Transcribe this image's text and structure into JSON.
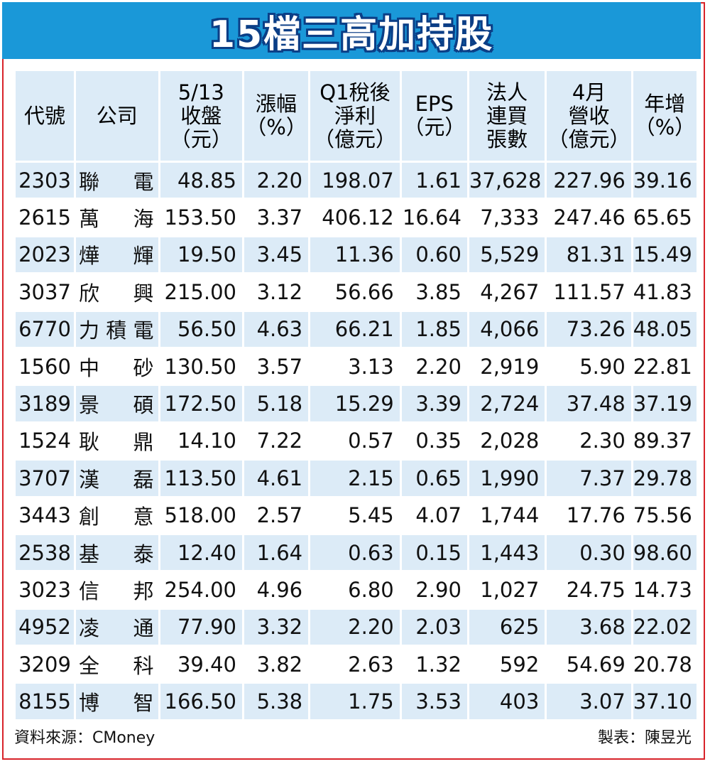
{
  "title": "15檔三高加持股",
  "headers": [
    [
      "代號"
    ],
    [
      "公司"
    ],
    [
      "5/13",
      "收盤",
      "（元）"
    ],
    [
      "漲幅",
      "（%）"
    ],
    [
      "Q1稅後",
      "淨利",
      "（億元）"
    ],
    [
      "EPS",
      "（元）"
    ],
    [
      "法人",
      "連買",
      "張數"
    ],
    [
      "4月",
      "營收",
      "（億元）"
    ],
    [
      "年增",
      "（%）"
    ]
  ],
  "rows": [
    [
      "2303",
      "聯　電",
      "48.85",
      "2.20",
      "198.07",
      "1.61",
      "37,628",
      "227.96",
      "39.16"
    ],
    [
      "2615",
      "萬　海",
      "153.50",
      "3.37",
      "406.12",
      "16.64",
      "7,333",
      "247.46",
      "65.65"
    ],
    [
      "2023",
      "燁　輝",
      "19.50",
      "3.45",
      "11.36",
      "0.60",
      "5,529",
      "81.31",
      "15.49"
    ],
    [
      "3037",
      "欣　興",
      "215.00",
      "3.12",
      "56.66",
      "3.85",
      "4,267",
      "111.57",
      "41.83"
    ],
    [
      "6770",
      "力積電",
      "56.50",
      "4.63",
      "66.21",
      "1.85",
      "4,066",
      "73.26",
      "48.05"
    ],
    [
      "1560",
      "中　砂",
      "130.50",
      "3.57",
      "3.13",
      "2.20",
      "2,919",
      "5.90",
      "22.81"
    ],
    [
      "3189",
      "景　碩",
      "172.50",
      "5.18",
      "15.29",
      "3.39",
      "2,724",
      "37.48",
      "37.19"
    ],
    [
      "1524",
      "耿　鼎",
      "14.10",
      "7.22",
      "0.57",
      "0.35",
      "2,028",
      "2.30",
      "89.37"
    ],
    [
      "3707",
      "漢　磊",
      "113.50",
      "4.61",
      "2.15",
      "0.65",
      "1,990",
      "7.37",
      "29.78"
    ],
    [
      "3443",
      "創　意",
      "518.00",
      "2.57",
      "5.45",
      "4.07",
      "1,744",
      "17.76",
      "75.56"
    ],
    [
      "2538",
      "基　泰",
      "12.40",
      "1.64",
      "0.63",
      "0.15",
      "1,443",
      "0.30",
      "98.60"
    ],
    [
      "3023",
      "信　邦",
      "254.00",
      "4.96",
      "6.80",
      "2.90",
      "1,027",
      "24.75",
      "14.73"
    ],
    [
      "4952",
      "凌　通",
      "77.90",
      "3.32",
      "2.20",
      "2.03",
      "625",
      "3.68",
      "22.02"
    ],
    [
      "3209",
      "全　科",
      "39.40",
      "3.82",
      "2.63",
      "1.32",
      "592",
      "54.69",
      "20.78"
    ],
    [
      "8155",
      "博　智",
      "166.50",
      "5.38",
      "1.75",
      "3.53",
      "403",
      "3.07",
      "37.10"
    ]
  ],
  "footer": {
    "source": "資料來源：CMoney",
    "credit": "製表：陳昱光"
  },
  "colors": {
    "title_bg": "#1a98d8",
    "title_outline": "#0b3e86",
    "header_bg": "#dcebf7",
    "stripe_bg": "#dcebf7",
    "border": "#d8232a"
  }
}
